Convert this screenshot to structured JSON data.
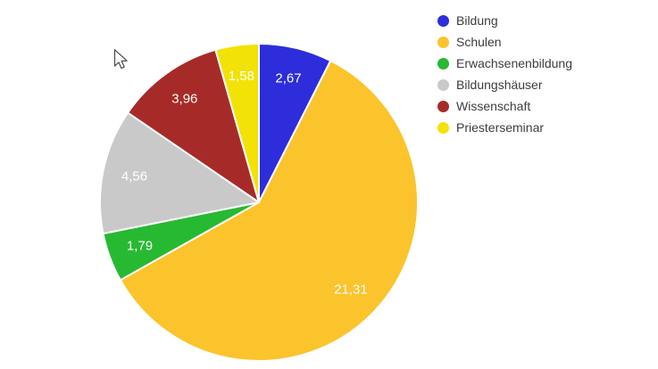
{
  "chart_data": {
    "type": "pie",
    "title": "",
    "legend_position": "right",
    "direction": "clockwise",
    "start_angle_deg": 0,
    "total": 35.87,
    "background_color": "#FFFFFF",
    "slice_label_color": "#FFFFFF",
    "legend_text_color": "#3C3C3C",
    "slices": [
      {
        "label": "Bildung",
        "value": 2.67,
        "value_label": "2,67",
        "color": "#2D2DDB"
      },
      {
        "label": "Schulen",
        "value": 21.31,
        "value_label": "21,31",
        "color": "#FBC42D"
      },
      {
        "label": "Erwachsenenbildung",
        "value": 1.79,
        "value_label": "1,79",
        "color": "#28B932"
      },
      {
        "label": "Bildungshäuser",
        "value": 4.56,
        "value_label": "4,56",
        "color": "#C9C9C9"
      },
      {
        "label": "Wissenschaft",
        "value": 3.96,
        "value_label": "3,96",
        "color": "#A62B28"
      },
      {
        "label": "Priesterseminar",
        "value": 1.58,
        "value_label": "1,58",
        "color": "#F2E205"
      }
    ]
  }
}
